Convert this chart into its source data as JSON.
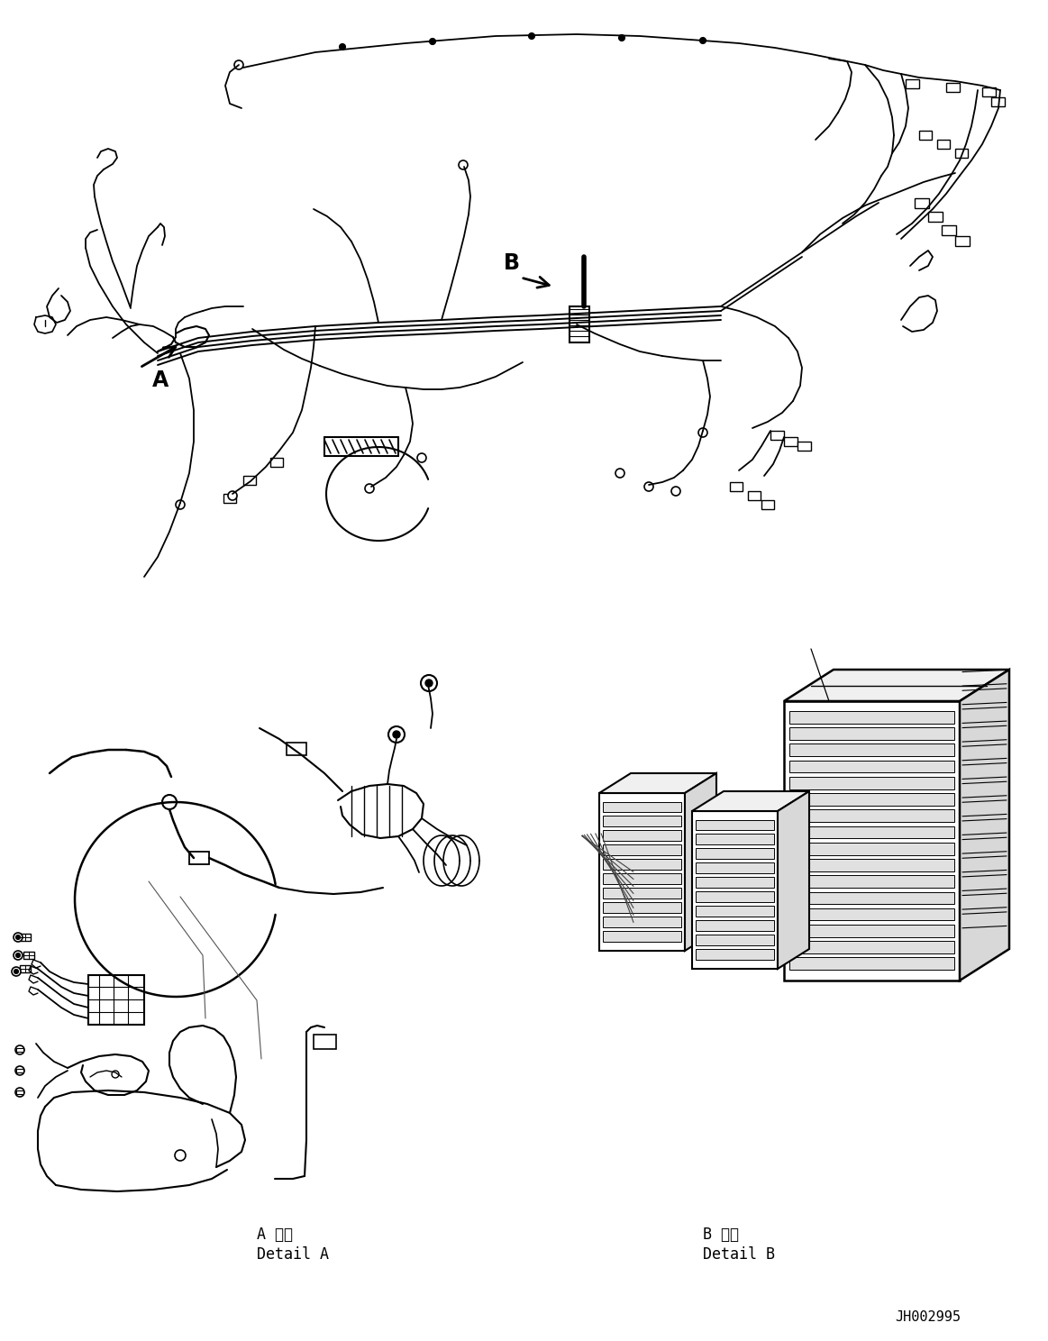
{
  "background_color": "#ffffff",
  "line_color": "#000000",
  "fig_width": 11.63,
  "fig_height": 14.88,
  "dpi": 100,
  "part_number": "JH002995",
  "label_A": "A",
  "label_B": "B",
  "detail_A_ja": "A 詳細",
  "detail_A_en": "Detail A",
  "detail_B_ja": "B 詳細",
  "detail_B_en": "Detail B"
}
